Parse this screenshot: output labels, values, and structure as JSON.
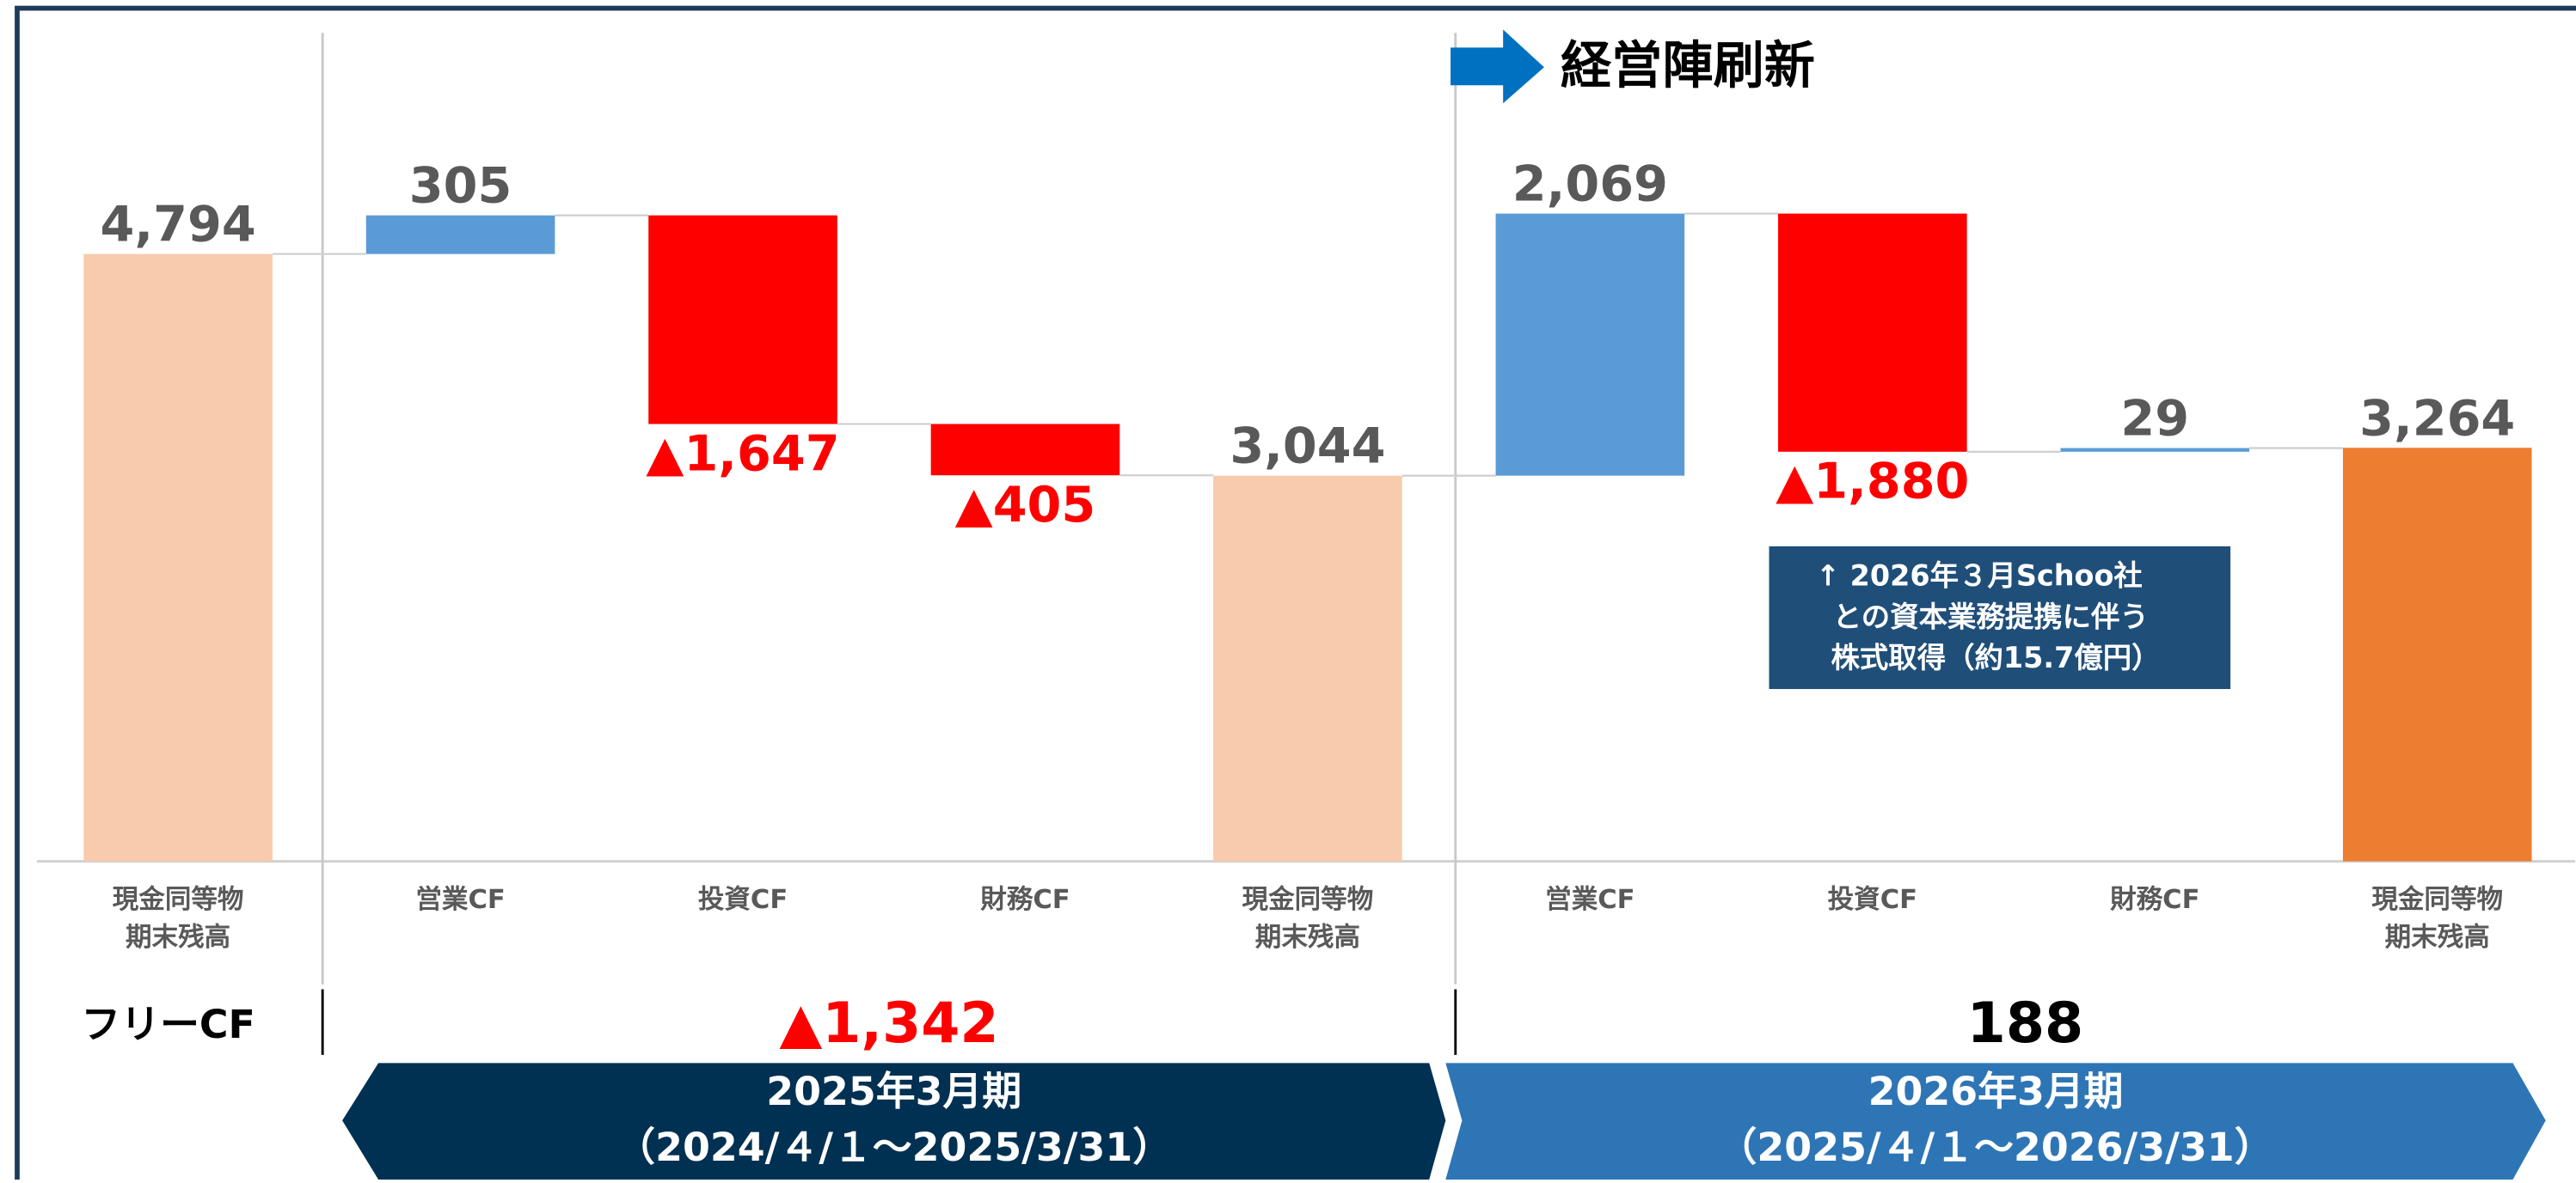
{
  "chart_data": {
    "type": "waterfall",
    "annotation": "経営陣刷新",
    "note": [
      "↑ 2026年３月Schoo社",
      "との資本業務提携に伴う",
      "株式取得（約15.7億円）"
    ],
    "categories": [
      [
        "現金同等物",
        "期末残高"
      ],
      [
        "営業CF"
      ],
      [
        "投資CF"
      ],
      [
        "財務CF"
      ],
      [
        "現金同等物",
        "期末残高"
      ],
      [
        "営業CF"
      ],
      [
        "投資CF"
      ],
      [
        "財務CF"
      ],
      [
        "現金同等物",
        "期末残高"
      ]
    ],
    "values": [
      4794,
      305,
      -1647,
      -405,
      3044,
      2069,
      -1880,
      29,
      3264
    ],
    "value_labels": [
      "4,794",
      "305",
      "▲1,647",
      "▲405",
      "3,044",
      "2,069",
      "▲1,880",
      "29",
      "3,264"
    ],
    "measure": [
      "total",
      "relative",
      "relative",
      "relative",
      "total",
      "relative",
      "relative",
      "relative",
      "total"
    ],
    "colors": [
      "#f8cbad",
      "#5b9bd5",
      "#ff0000",
      "#ff0000",
      "#f8cbad",
      "#5b9bd5",
      "#ff0000",
      "#5b9bd5",
      "#ed7d31"
    ],
    "ylim": [
      0,
      6540
    ],
    "free_cf": {
      "label": "フリーCF",
      "values": [
        -1342,
        188
      ],
      "value_labels": [
        "▲1,342",
        "188"
      ]
    },
    "periods": [
      {
        "title": "2025年3月期",
        "range": "（2024/４/１～2025/3/31）"
      },
      {
        "title": "2026年3月期",
        "range": "（2025/４/１～2026/3/31）"
      }
    ]
  }
}
